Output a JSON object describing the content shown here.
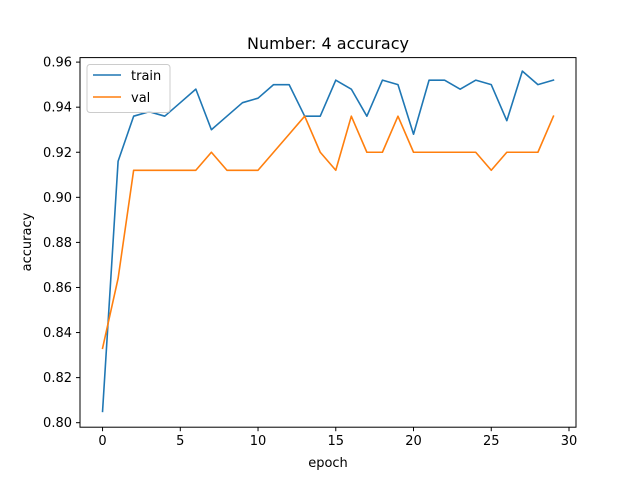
{
  "chart_data": {
    "type": "line",
    "title": "Number: 4 accuracy",
    "xlabel": "epoch",
    "ylabel": "accuracy",
    "xlim": [
      -1.45,
      30.45
    ],
    "ylim": [
      0.798,
      0.962
    ],
    "xticks": [
      0,
      5,
      10,
      15,
      20,
      25,
      30
    ],
    "yticks": [
      0.8,
      0.82,
      0.84,
      0.86,
      0.88,
      0.9,
      0.92,
      0.94,
      0.96
    ],
    "ytick_labels": [
      "0.80",
      "0.82",
      "0.84",
      "0.86",
      "0.88",
      "0.90",
      "0.92",
      "0.94",
      "0.96"
    ],
    "grid": false,
    "legend_position": "top-left",
    "x": [
      0,
      1,
      2,
      3,
      4,
      5,
      6,
      7,
      8,
      9,
      10,
      11,
      12,
      13,
      14,
      15,
      16,
      17,
      18,
      19,
      20,
      21,
      22,
      23,
      24,
      25,
      26,
      27,
      28,
      29
    ],
    "series": [
      {
        "name": "train",
        "color": "#1f77b4",
        "values": [
          0.805,
          0.916,
          0.936,
          0.938,
          0.936,
          0.942,
          0.948,
          0.93,
          0.936,
          0.942,
          0.944,
          0.95,
          0.95,
          0.936,
          0.936,
          0.952,
          0.948,
          0.936,
          0.952,
          0.95,
          0.928,
          0.952,
          0.952,
          0.948,
          0.952,
          0.95,
          0.934,
          0.956,
          0.95,
          0.952
        ]
      },
      {
        "name": "val",
        "color": "#ff7f0e",
        "values": [
          0.833,
          0.864,
          0.912,
          0.912,
          0.912,
          0.912,
          0.912,
          0.92,
          0.912,
          0.912,
          0.912,
          0.92,
          0.928,
          0.936,
          0.92,
          0.912,
          0.936,
          0.92,
          0.92,
          0.936,
          0.92,
          0.92,
          0.92,
          0.92,
          0.92,
          0.912,
          0.92,
          0.92,
          0.92,
          0.936
        ]
      }
    ]
  }
}
